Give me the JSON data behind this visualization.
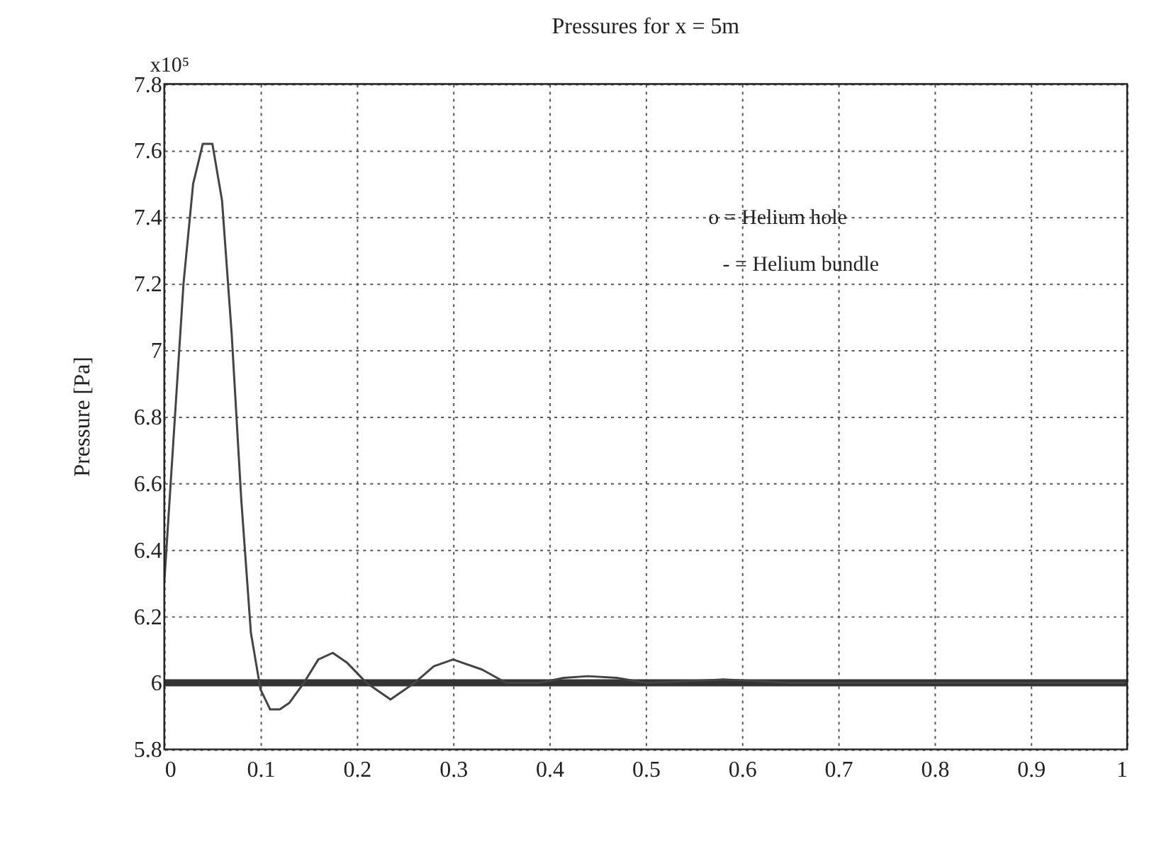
{
  "chart_data": {
    "type": "line",
    "title": "Pressures for x = 5m",
    "ylabel": "Pressure [Pa]",
    "annotations": [
      "x10⁵",
      "o = Helium hole",
      "- = Helium bundle"
    ],
    "xlim": [
      0,
      1
    ],
    "xticks": [
      0,
      0.1,
      0.2,
      0.3,
      0.4,
      0.5,
      0.6,
      0.7,
      0.8,
      0.9,
      1
    ],
    "ylim": [
      5.8,
      7.8
    ],
    "yticks": [
      5.8,
      6,
      6.2,
      6.4,
      6.6,
      6.8,
      7,
      7.2,
      7.4,
      7.6,
      7.8
    ],
    "grid": true,
    "line_style": "solid",
    "series": [
      {
        "color": "#333333",
        "x": [
          0,
          0.1,
          0.2,
          0.3,
          0.4,
          0.5,
          0.6,
          0.7,
          0.8,
          0.9,
          1
        ],
        "values": [
          6.0,
          6.0,
          6.0,
          6.0,
          6.0,
          6.0,
          6.0,
          6.0,
          6.0,
          6.0,
          6.0
        ]
      },
      {
        "color": "#444444",
        "x": [
          0,
          0.01,
          0.02,
          0.03,
          0.04,
          0.05,
          0.06,
          0.07,
          0.08,
          0.09,
          0.1,
          0.11,
          0.12,
          0.13,
          0.145,
          0.16,
          0.175,
          0.19,
          0.21,
          0.235,
          0.26,
          0.28,
          0.3,
          0.33,
          0.355,
          0.39,
          0.415,
          0.44,
          0.47,
          0.5,
          0.54,
          0.58,
          0.62,
          0.65,
          0.7,
          0.8,
          0.9,
          1
        ],
        "values": [
          6.3,
          6.75,
          7.2,
          7.5,
          7.62,
          7.62,
          7.45,
          7.05,
          6.55,
          6.15,
          5.98,
          5.92,
          5.92,
          5.94,
          6.0,
          6.07,
          6.09,
          6.06,
          6.0,
          5.95,
          6.0,
          6.05,
          6.07,
          6.04,
          6.0,
          6.0,
          6.015,
          6.02,
          6.015,
          6.0,
          6.005,
          6.01,
          6.005,
          6.0,
          6.0,
          6.0,
          6.0,
          6.0
        ]
      }
    ]
  }
}
